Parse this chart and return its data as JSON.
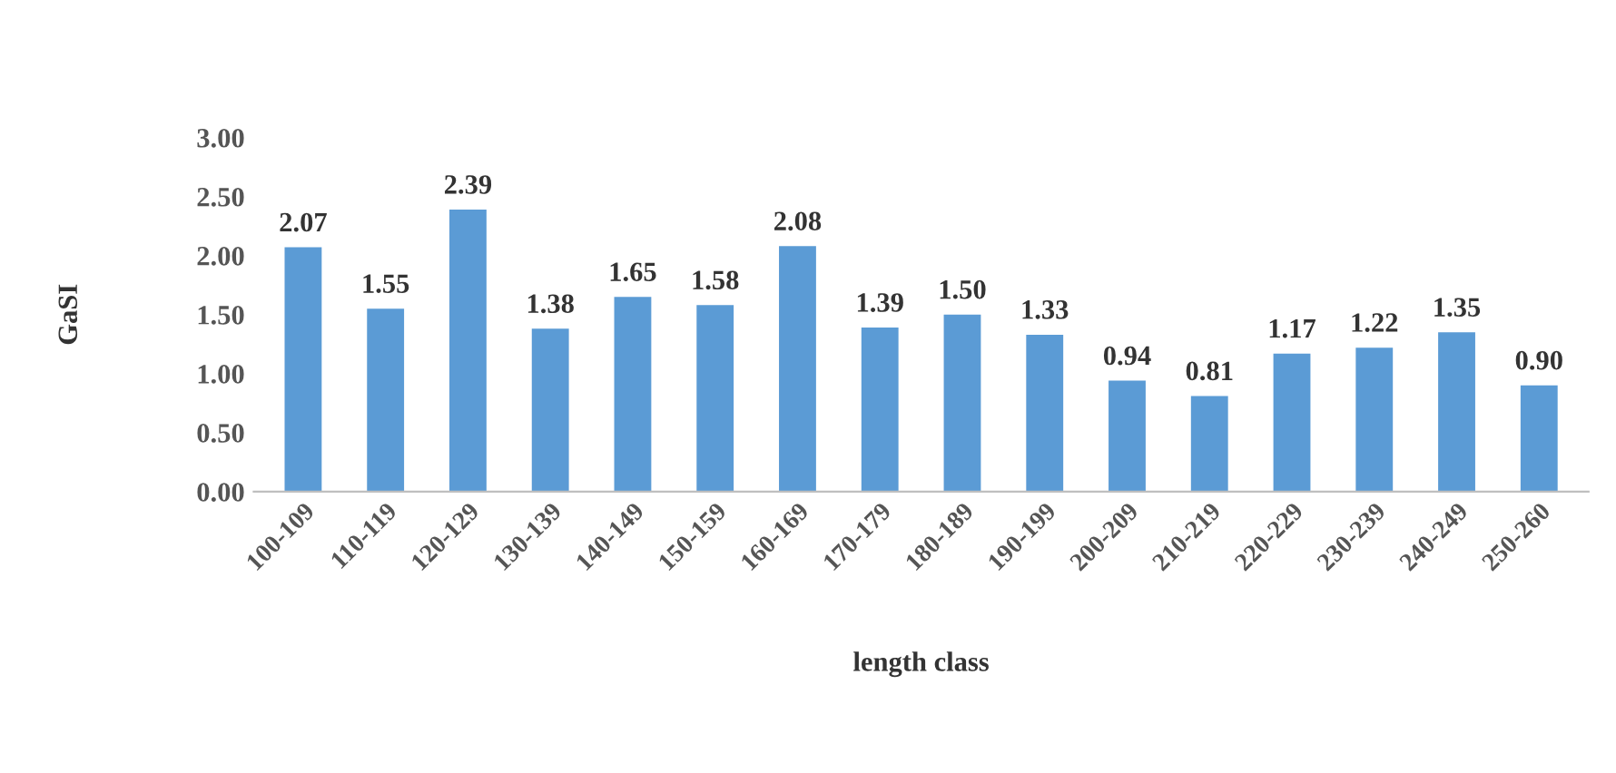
{
  "chart_data": {
    "type": "bar",
    "xlabel": "length class",
    "ylabel": "GaSI",
    "categories": [
      "100-109",
      "110-119",
      "120-129",
      "130-139",
      "140-149",
      "150-159",
      "160-169",
      "170-179",
      "180-189",
      "190-199",
      "200-209",
      "210-219",
      "220-229",
      "230-239",
      "240-249",
      "250-260"
    ],
    "values": [
      2.07,
      1.55,
      2.39,
      1.38,
      1.65,
      1.58,
      2.08,
      1.39,
      1.5,
      1.33,
      0.94,
      0.81,
      1.17,
      1.22,
      1.35,
      0.9
    ],
    "value_labels": [
      "2.07",
      "1.55",
      "2.39",
      "1.38",
      "1.65",
      "1.58",
      "2.08",
      "1.39",
      "1.50",
      "1.33",
      "0.94",
      "0.81",
      "1.17",
      "1.22",
      "1.35",
      "0.90"
    ],
    "color": "#5b9bd5",
    "ylim": [
      0,
      3
    ],
    "yticks": [
      {
        "value": 0,
        "label": "0.00"
      },
      {
        "value": 0.5,
        "label": "0.50"
      },
      {
        "value": 1,
        "label": "1.00"
      },
      {
        "value": 1.5,
        "label": "1.50"
      },
      {
        "value": 2,
        "label": "2.00"
      },
      {
        "value": 2.5,
        "label": "2.50"
      },
      {
        "value": 3,
        "label": "3.00"
      }
    ],
    "grid": false,
    "legend": false
  }
}
